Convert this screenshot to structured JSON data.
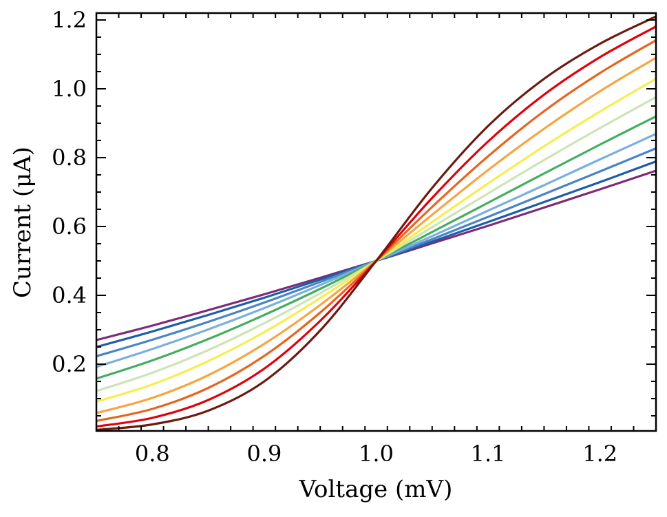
{
  "chart_data": {
    "type": "line",
    "title": "",
    "xlabel": "Voltage (mV)",
    "ylabel": "Current (μA)",
    "xlim": [
      0.75,
      1.25
    ],
    "ylim": [
      0.006,
      1.22
    ],
    "grid": false,
    "xticks": [
      "0.8",
      "0.9",
      "1.0",
      "1.1",
      "1.2"
    ],
    "yticks": [
      "0.2",
      "0.4",
      "0.6",
      "0.8",
      "1.0",
      "1.2"
    ],
    "x": [
      0.75,
      0.8,
      0.85,
      0.9,
      0.95,
      1.0,
      1.05,
      1.1,
      1.15,
      1.2,
      1.25
    ],
    "series": [
      {
        "color": "#7f2a78",
        "values": [
          0.27,
          0.312,
          0.357,
          0.403,
          0.451,
          0.5,
          0.551,
          0.602,
          0.655,
          0.708,
          0.762
        ]
      },
      {
        "color": "#1d5da8",
        "values": [
          0.25,
          0.295,
          0.343,
          0.393,
          0.446,
          0.5,
          0.556,
          0.613,
          0.671,
          0.729,
          0.789
        ]
      },
      {
        "color": "#4a84c4",
        "values": [
          0.223,
          0.271,
          0.323,
          0.379,
          0.439,
          0.5,
          0.563,
          0.628,
          0.694,
          0.76,
          0.827
        ]
      },
      {
        "color": "#7bb0dc",
        "values": [
          0.192,
          0.244,
          0.301,
          0.363,
          0.43,
          0.5,
          0.572,
          0.646,
          0.72,
          0.795,
          0.869
        ]
      },
      {
        "color": "#45ad5f",
        "values": [
          0.158,
          0.211,
          0.273,
          0.343,
          0.419,
          0.5,
          0.584,
          0.669,
          0.754,
          0.838,
          0.92
        ]
      },
      {
        "color": "#cde4b4",
        "values": [
          0.122,
          0.175,
          0.241,
          0.319,
          0.406,
          0.5,
          0.598,
          0.696,
          0.793,
          0.886,
          0.976
        ]
      },
      {
        "color": "#f6ee50",
        "values": [
          0.091,
          0.141,
          0.209,
          0.293,
          0.392,
          0.5,
          0.613,
          0.725,
          0.833,
          0.934,
          1.029
        ]
      },
      {
        "color": "#f7a541",
        "values": [
          0.058,
          0.102,
          0.168,
          0.259,
          0.372,
          0.5,
          0.634,
          0.764,
          0.884,
          0.993,
          1.09
        ]
      },
      {
        "color": "#e8641e",
        "values": [
          0.035,
          0.07,
          0.131,
          0.224,
          0.35,
          0.5,
          0.657,
          0.804,
          0.935,
          1.046,
          1.141
        ]
      },
      {
        "color": "#e0000b",
        "values": [
          0.019,
          0.044,
          0.096,
          0.187,
          0.326,
          0.5,
          0.683,
          0.847,
          0.983,
          1.092,
          1.181
        ]
      },
      {
        "color": "#6b1a10",
        "values": [
          0.009,
          0.025,
          0.065,
          0.15,
          0.298,
          0.5,
          0.712,
          0.892,
          1.029,
          1.131,
          1.21
        ]
      }
    ]
  }
}
